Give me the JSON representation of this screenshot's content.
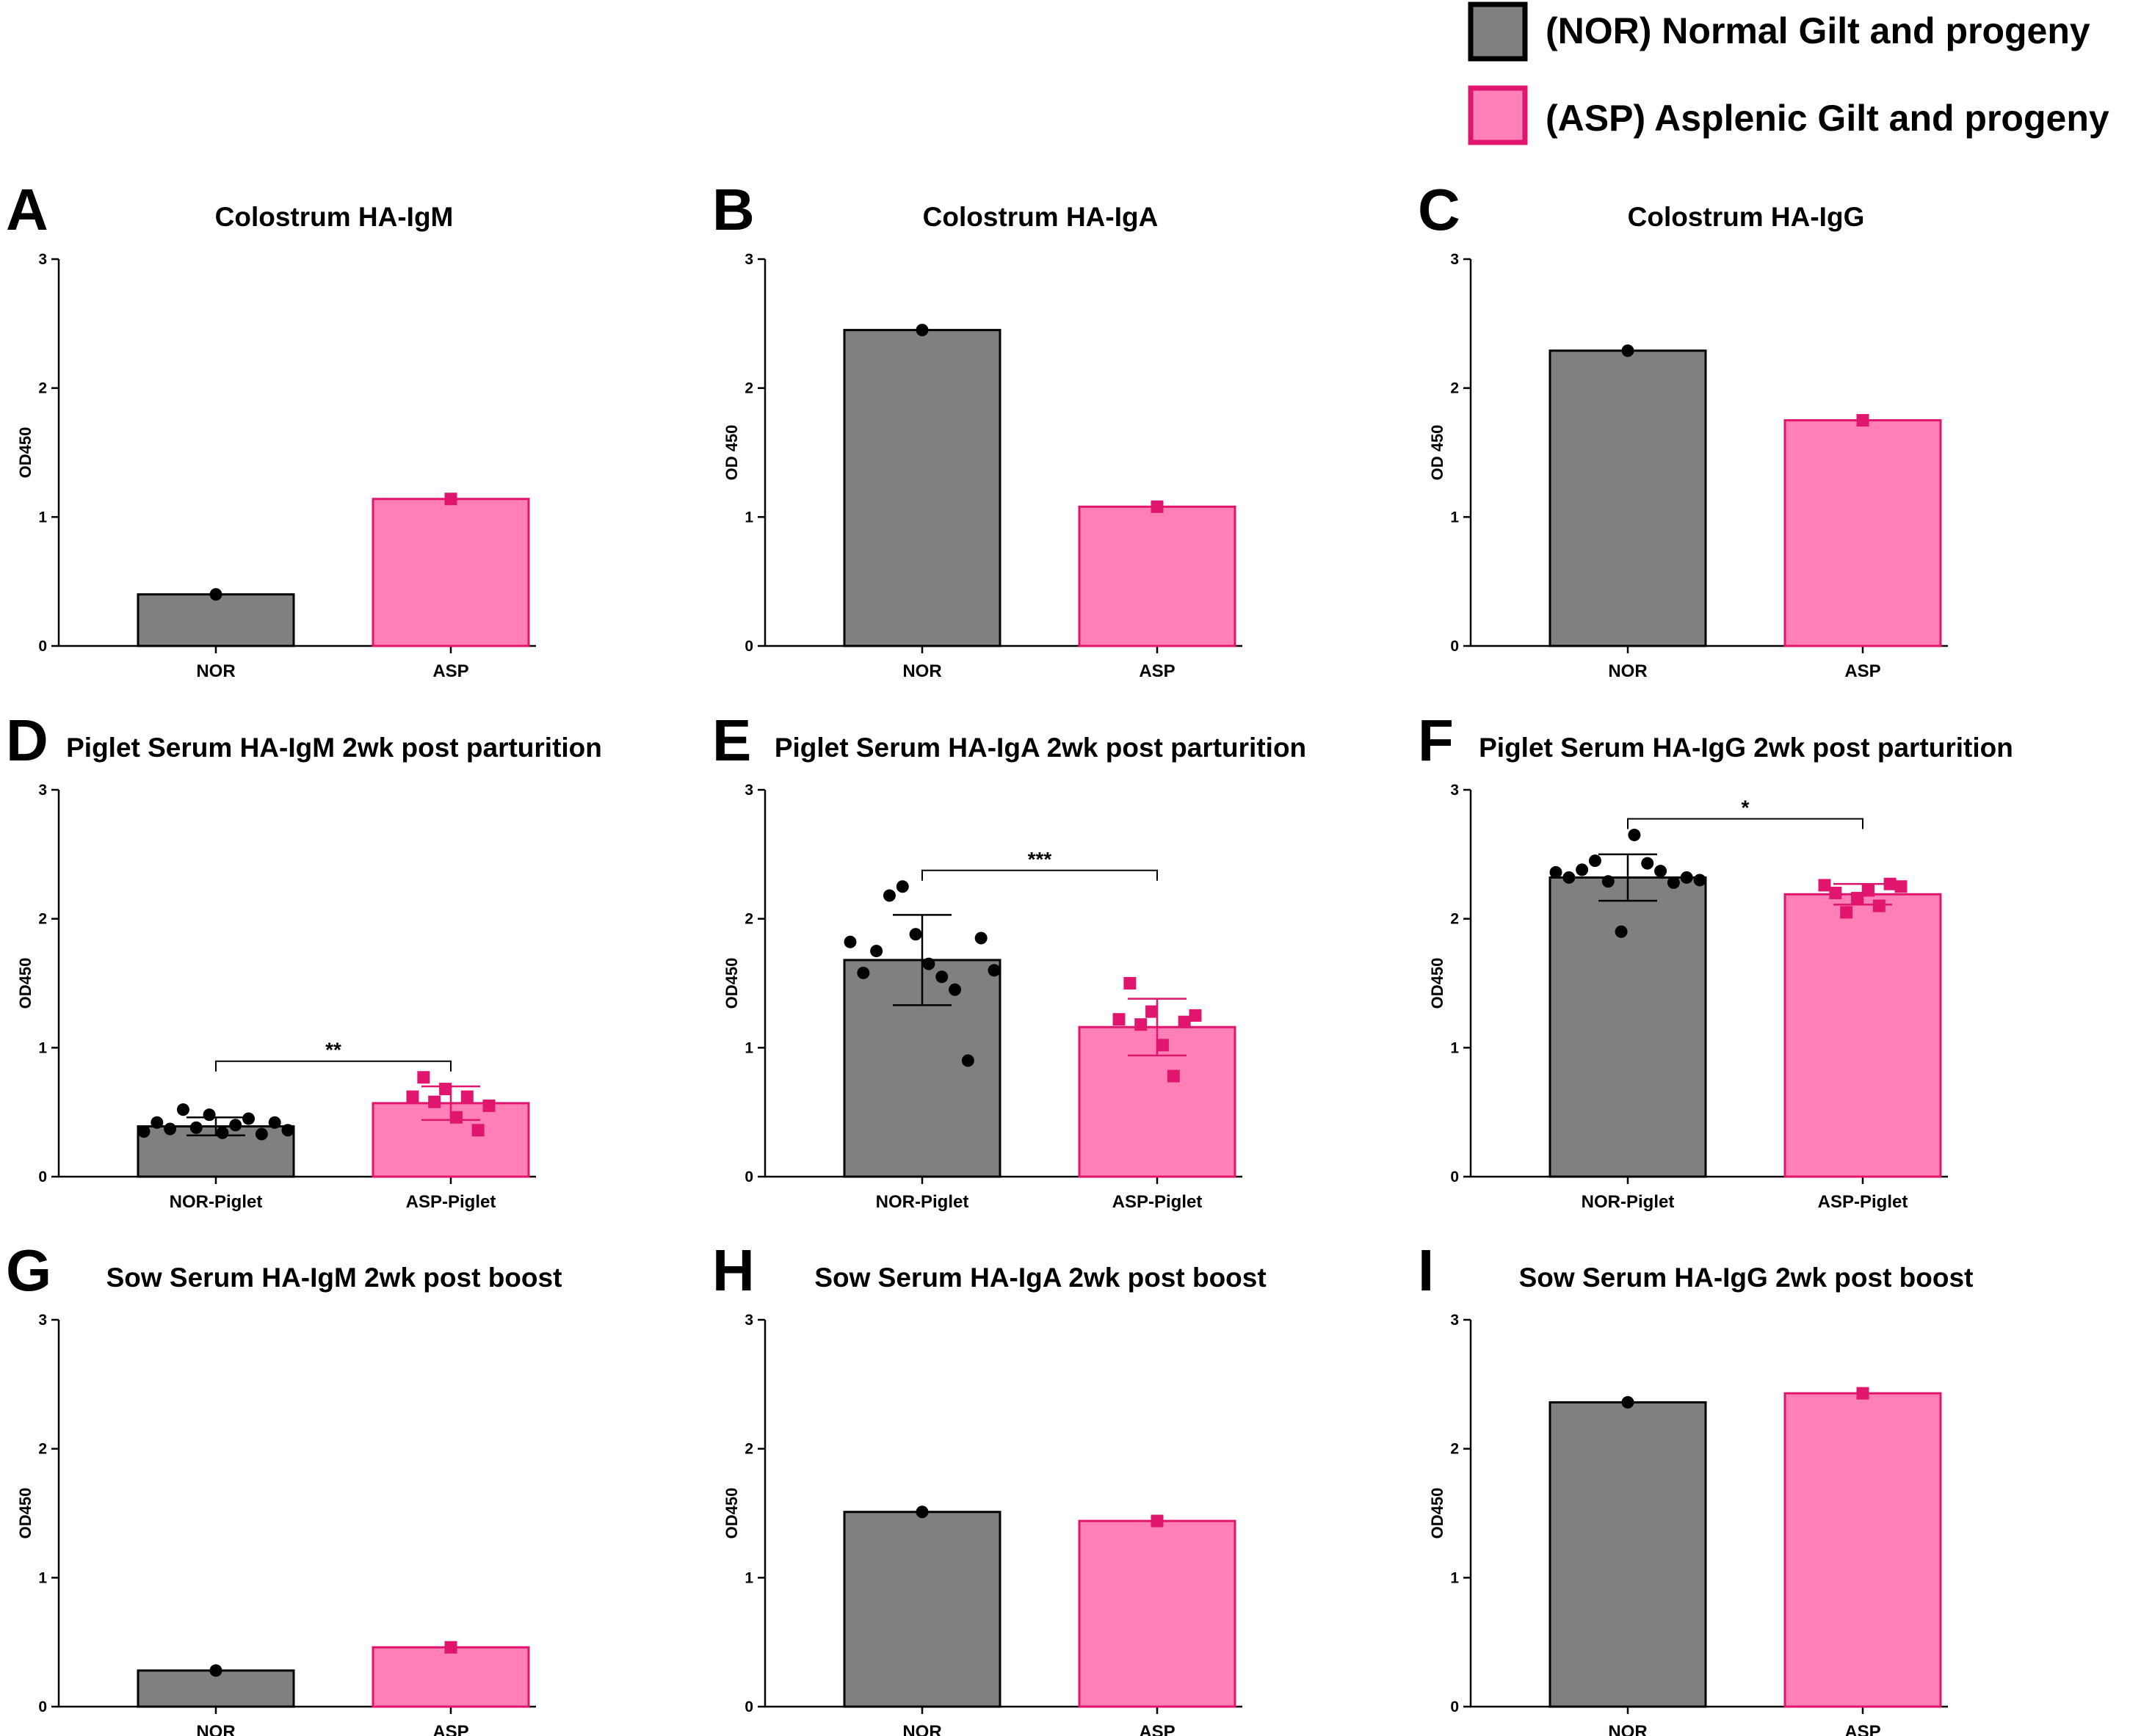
{
  "colors": {
    "nor_fill": "#808080",
    "nor_edge": "#000000",
    "asp_fill": "#ff80b6",
    "asp_edge": "#e0156d",
    "axis": "#000000"
  },
  "legend": [
    {
      "key": "nor",
      "label": "(NOR) Normal Gilt and progeny"
    },
    {
      "key": "asp",
      "label": "(ASP) Asplenic Gilt and progeny"
    }
  ],
  "chart_data": [
    {
      "panel": "A",
      "type": "bar",
      "title": "Colostrum HA-IgM",
      "ylabel": "OD450",
      "ylim": [
        0,
        3
      ],
      "yticks": [
        0,
        1,
        2,
        3
      ],
      "categories": [
        "NOR",
        "ASP"
      ],
      "values": [
        0.4,
        1.14
      ],
      "points": [
        [
          0.4
        ],
        [
          1.14
        ]
      ],
      "sd": null,
      "significance": null
    },
    {
      "panel": "B",
      "type": "bar",
      "title": "Colostrum HA-IgA",
      "ylabel": "OD 450",
      "ylim": [
        0,
        3
      ],
      "yticks": [
        0,
        1,
        2,
        3
      ],
      "categories": [
        "NOR",
        "ASP"
      ],
      "values": [
        2.45,
        1.08
      ],
      "points": [
        [
          2.45
        ],
        [
          1.08
        ]
      ],
      "sd": null,
      "significance": null
    },
    {
      "panel": "C",
      "type": "bar",
      "title": "Colostrum HA-IgG",
      "ylabel": "OD 450",
      "ylim": [
        0,
        3
      ],
      "yticks": [
        0,
        1,
        2,
        3
      ],
      "categories": [
        "NOR",
        "ASP"
      ],
      "values": [
        2.29,
        1.75
      ],
      "points": [
        [
          2.29
        ],
        [
          1.75
        ]
      ],
      "sd": null,
      "significance": null
    },
    {
      "panel": "D",
      "type": "bar",
      "title": "Piglet Serum HA-IgM 2wk post parturition",
      "ylabel": "OD450",
      "ylim": [
        0,
        3
      ],
      "yticks": [
        0,
        1,
        2,
        3
      ],
      "categories": [
        "NOR-Piglet",
        "ASP-Piglet"
      ],
      "values": [
        0.39,
        0.57
      ],
      "points": [
        [
          0.35,
          0.42,
          0.37,
          0.52,
          0.38,
          0.48,
          0.34,
          0.4,
          0.45,
          0.33,
          0.42,
          0.36
        ],
        [
          0.62,
          0.77,
          0.58,
          0.68,
          0.46,
          0.62,
          0.36,
          0.55
        ]
      ],
      "sd": [
        0.07,
        0.13
      ],
      "significance": "**"
    },
    {
      "panel": "E",
      "type": "bar",
      "title": "Piglet Serum HA-IgA 2wk post parturition",
      "ylabel": "OD450",
      "ylim": [
        0,
        3
      ],
      "yticks": [
        0,
        1,
        2,
        3
      ],
      "categories": [
        "NOR-Piglet",
        "ASP-Piglet"
      ],
      "values": [
        1.68,
        1.16
      ],
      "points": [
        [
          1.82,
          1.58,
          1.75,
          2.18,
          2.25,
          1.88,
          1.65,
          1.55,
          1.45,
          0.9,
          1.85,
          1.6
        ],
        [
          1.22,
          1.5,
          1.18,
          1.28,
          1.02,
          0.78,
          1.2,
          1.25
        ]
      ],
      "sd": [
        0.35,
        0.22
      ],
      "significance": "***"
    },
    {
      "panel": "F",
      "type": "bar",
      "title": "Piglet Serum HA-IgG 2wk post parturition",
      "ylabel": "OD450",
      "ylim": [
        0,
        3
      ],
      "yticks": [
        0,
        1,
        2,
        3
      ],
      "categories": [
        "NOR-Piglet",
        "ASP-Piglet"
      ],
      "values": [
        2.32,
        2.19
      ],
      "points": [
        [
          2.36,
          2.32,
          2.38,
          2.45,
          2.29,
          1.9,
          2.65,
          2.43,
          2.37,
          2.28,
          2.32,
          2.3
        ],
        [
          2.26,
          2.2,
          2.05,
          2.16,
          2.22,
          2.1,
          2.27,
          2.25
        ]
      ],
      "sd": [
        0.18,
        0.08
      ],
      "significance": "*"
    },
    {
      "panel": "G",
      "type": "bar",
      "title": "Sow Serum HA-IgM 2wk post boost",
      "ylabel": "OD450",
      "ylim": [
        0,
        3
      ],
      "yticks": [
        0,
        1,
        2,
        3
      ],
      "categories": [
        "NOR",
        "ASP"
      ],
      "values": [
        0.28,
        0.46
      ],
      "points": [
        [
          0.28
        ],
        [
          0.46
        ]
      ],
      "sd": null,
      "significance": null
    },
    {
      "panel": "H",
      "type": "bar",
      "title": "Sow Serum HA-IgA 2wk post boost",
      "ylabel": "OD450",
      "ylim": [
        0,
        3
      ],
      "yticks": [
        0,
        1,
        2,
        3
      ],
      "categories": [
        "NOR",
        "ASP"
      ],
      "values": [
        1.51,
        1.44
      ],
      "points": [
        [
          1.51
        ],
        [
          1.44
        ]
      ],
      "sd": null,
      "significance": null
    },
    {
      "panel": "I",
      "type": "bar",
      "title": "Sow Serum HA-IgG 2wk post boost",
      "ylabel": "OD450",
      "ylim": [
        0,
        3
      ],
      "yticks": [
        0,
        1,
        2,
        3
      ],
      "categories": [
        "NOR",
        "ASP"
      ],
      "values": [
        2.36,
        2.43
      ],
      "points": [
        [
          2.36
        ],
        [
          2.43
        ]
      ],
      "sd": null,
      "significance": null
    }
  ]
}
